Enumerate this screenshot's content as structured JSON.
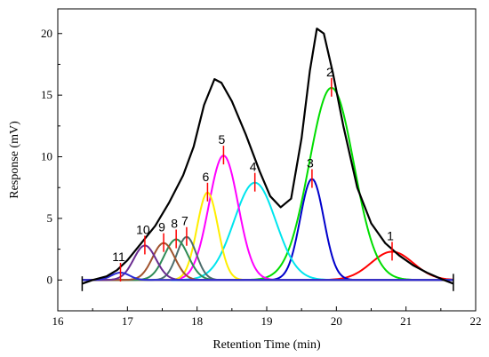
{
  "chart_data": {
    "type": "line",
    "title": "",
    "xlabel": "Retention Time (min)",
    "ylabel": "Response (mV)",
    "xlim": [
      16,
      22
    ],
    "ylim": [
      -2.5,
      22
    ],
    "x_ticks": [
      16,
      17,
      18,
      19,
      20,
      21,
      22
    ],
    "y_ticks": [
      0,
      5,
      10,
      15,
      20
    ],
    "grid": false,
    "legend": "none",
    "overall": {
      "color": "#000000",
      "x": [
        16.35,
        16.5,
        16.7,
        16.85,
        17.0,
        17.2,
        17.4,
        17.6,
        17.8,
        17.95,
        18.1,
        18.25,
        18.35,
        18.5,
        18.7,
        18.9,
        19.05,
        19.2,
        19.35,
        19.5,
        19.62,
        19.72,
        19.82,
        19.95,
        20.1,
        20.3,
        20.5,
        20.7,
        20.9,
        21.1,
        21.3,
        21.5,
        21.68
      ],
      "y": [
        -0.3,
        0.0,
        0.3,
        0.8,
        1.6,
        3.0,
        4.4,
        6.3,
        8.5,
        10.8,
        14.2,
        16.3,
        16.0,
        14.5,
        11.8,
        8.8,
        6.8,
        5.9,
        6.6,
        11.5,
        17.0,
        20.4,
        20.0,
        16.8,
        12.5,
        7.5,
        4.6,
        3.0,
        2.0,
        1.2,
        0.6,
        0.1,
        -0.3
      ]
    },
    "peaks": [
      {
        "label": "1",
        "center": 20.8,
        "height": 2.3,
        "sigma": 0.3,
        "color": "#ff0000"
      },
      {
        "label": "2",
        "center": 19.93,
        "height": 15.6,
        "sigma": 0.32,
        "color": "#00dd00"
      },
      {
        "label": "3",
        "center": 19.65,
        "height": 8.2,
        "sigma": 0.17,
        "color": "#0000cc"
      },
      {
        "label": "4",
        "center": 18.83,
        "height": 7.9,
        "sigma": 0.3,
        "color": "#00e5ee"
      },
      {
        "label": "5",
        "center": 18.38,
        "height": 10.1,
        "sigma": 0.21,
        "color": "#ff00ff"
      },
      {
        "label": "6",
        "center": 18.15,
        "height": 7.1,
        "sigma": 0.15,
        "color": "#ffee00"
      },
      {
        "label": "7",
        "center": 17.85,
        "height": 3.5,
        "sigma": 0.14,
        "color": "#4d6e6e"
      },
      {
        "label": "8",
        "center": 17.7,
        "height": 3.3,
        "sigma": 0.17,
        "color": "#2e8b57"
      },
      {
        "label": "9",
        "center": 17.52,
        "height": 3.0,
        "sigma": 0.16,
        "color": "#a0522d"
      },
      {
        "label": "10",
        "center": 17.25,
        "height": 2.8,
        "sigma": 0.16,
        "color": "#6a2c91"
      },
      {
        "label": "11",
        "center": 16.9,
        "height": 0.6,
        "sigma": 0.13,
        "color": "#2b2bd6"
      }
    ]
  }
}
